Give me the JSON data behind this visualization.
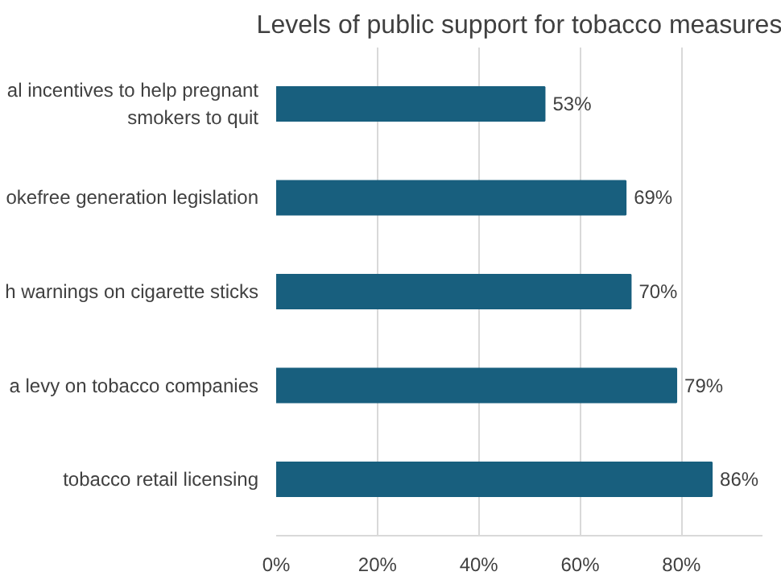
{
  "chart_data": {
    "type": "bar",
    "orientation": "horizontal",
    "title": "Levels of public support for tobacco measures",
    "categories": [
      "al incentives to help pregnant\nsmokers to quit",
      "okefree generation legislation",
      "h warnings on cigarette sticks",
      "a levy on tobacco companies",
      "tobacco retail licensing"
    ],
    "values": [
      53,
      69,
      70,
      79,
      86
    ],
    "color": "#185f7e",
    "value_labels": [
      "53%",
      "69%",
      "70%",
      "79%",
      "86%"
    ],
    "xlim": [
      0,
      96
    ],
    "xticks": [
      {
        "value": 0,
        "label": "0%"
      },
      {
        "value": 20,
        "label": "20%"
      },
      {
        "value": 40,
        "label": "40%"
      },
      {
        "value": 60,
        "label": "60%"
      },
      {
        "value": 80,
        "label": "80%"
      }
    ],
    "grid": "x"
  }
}
